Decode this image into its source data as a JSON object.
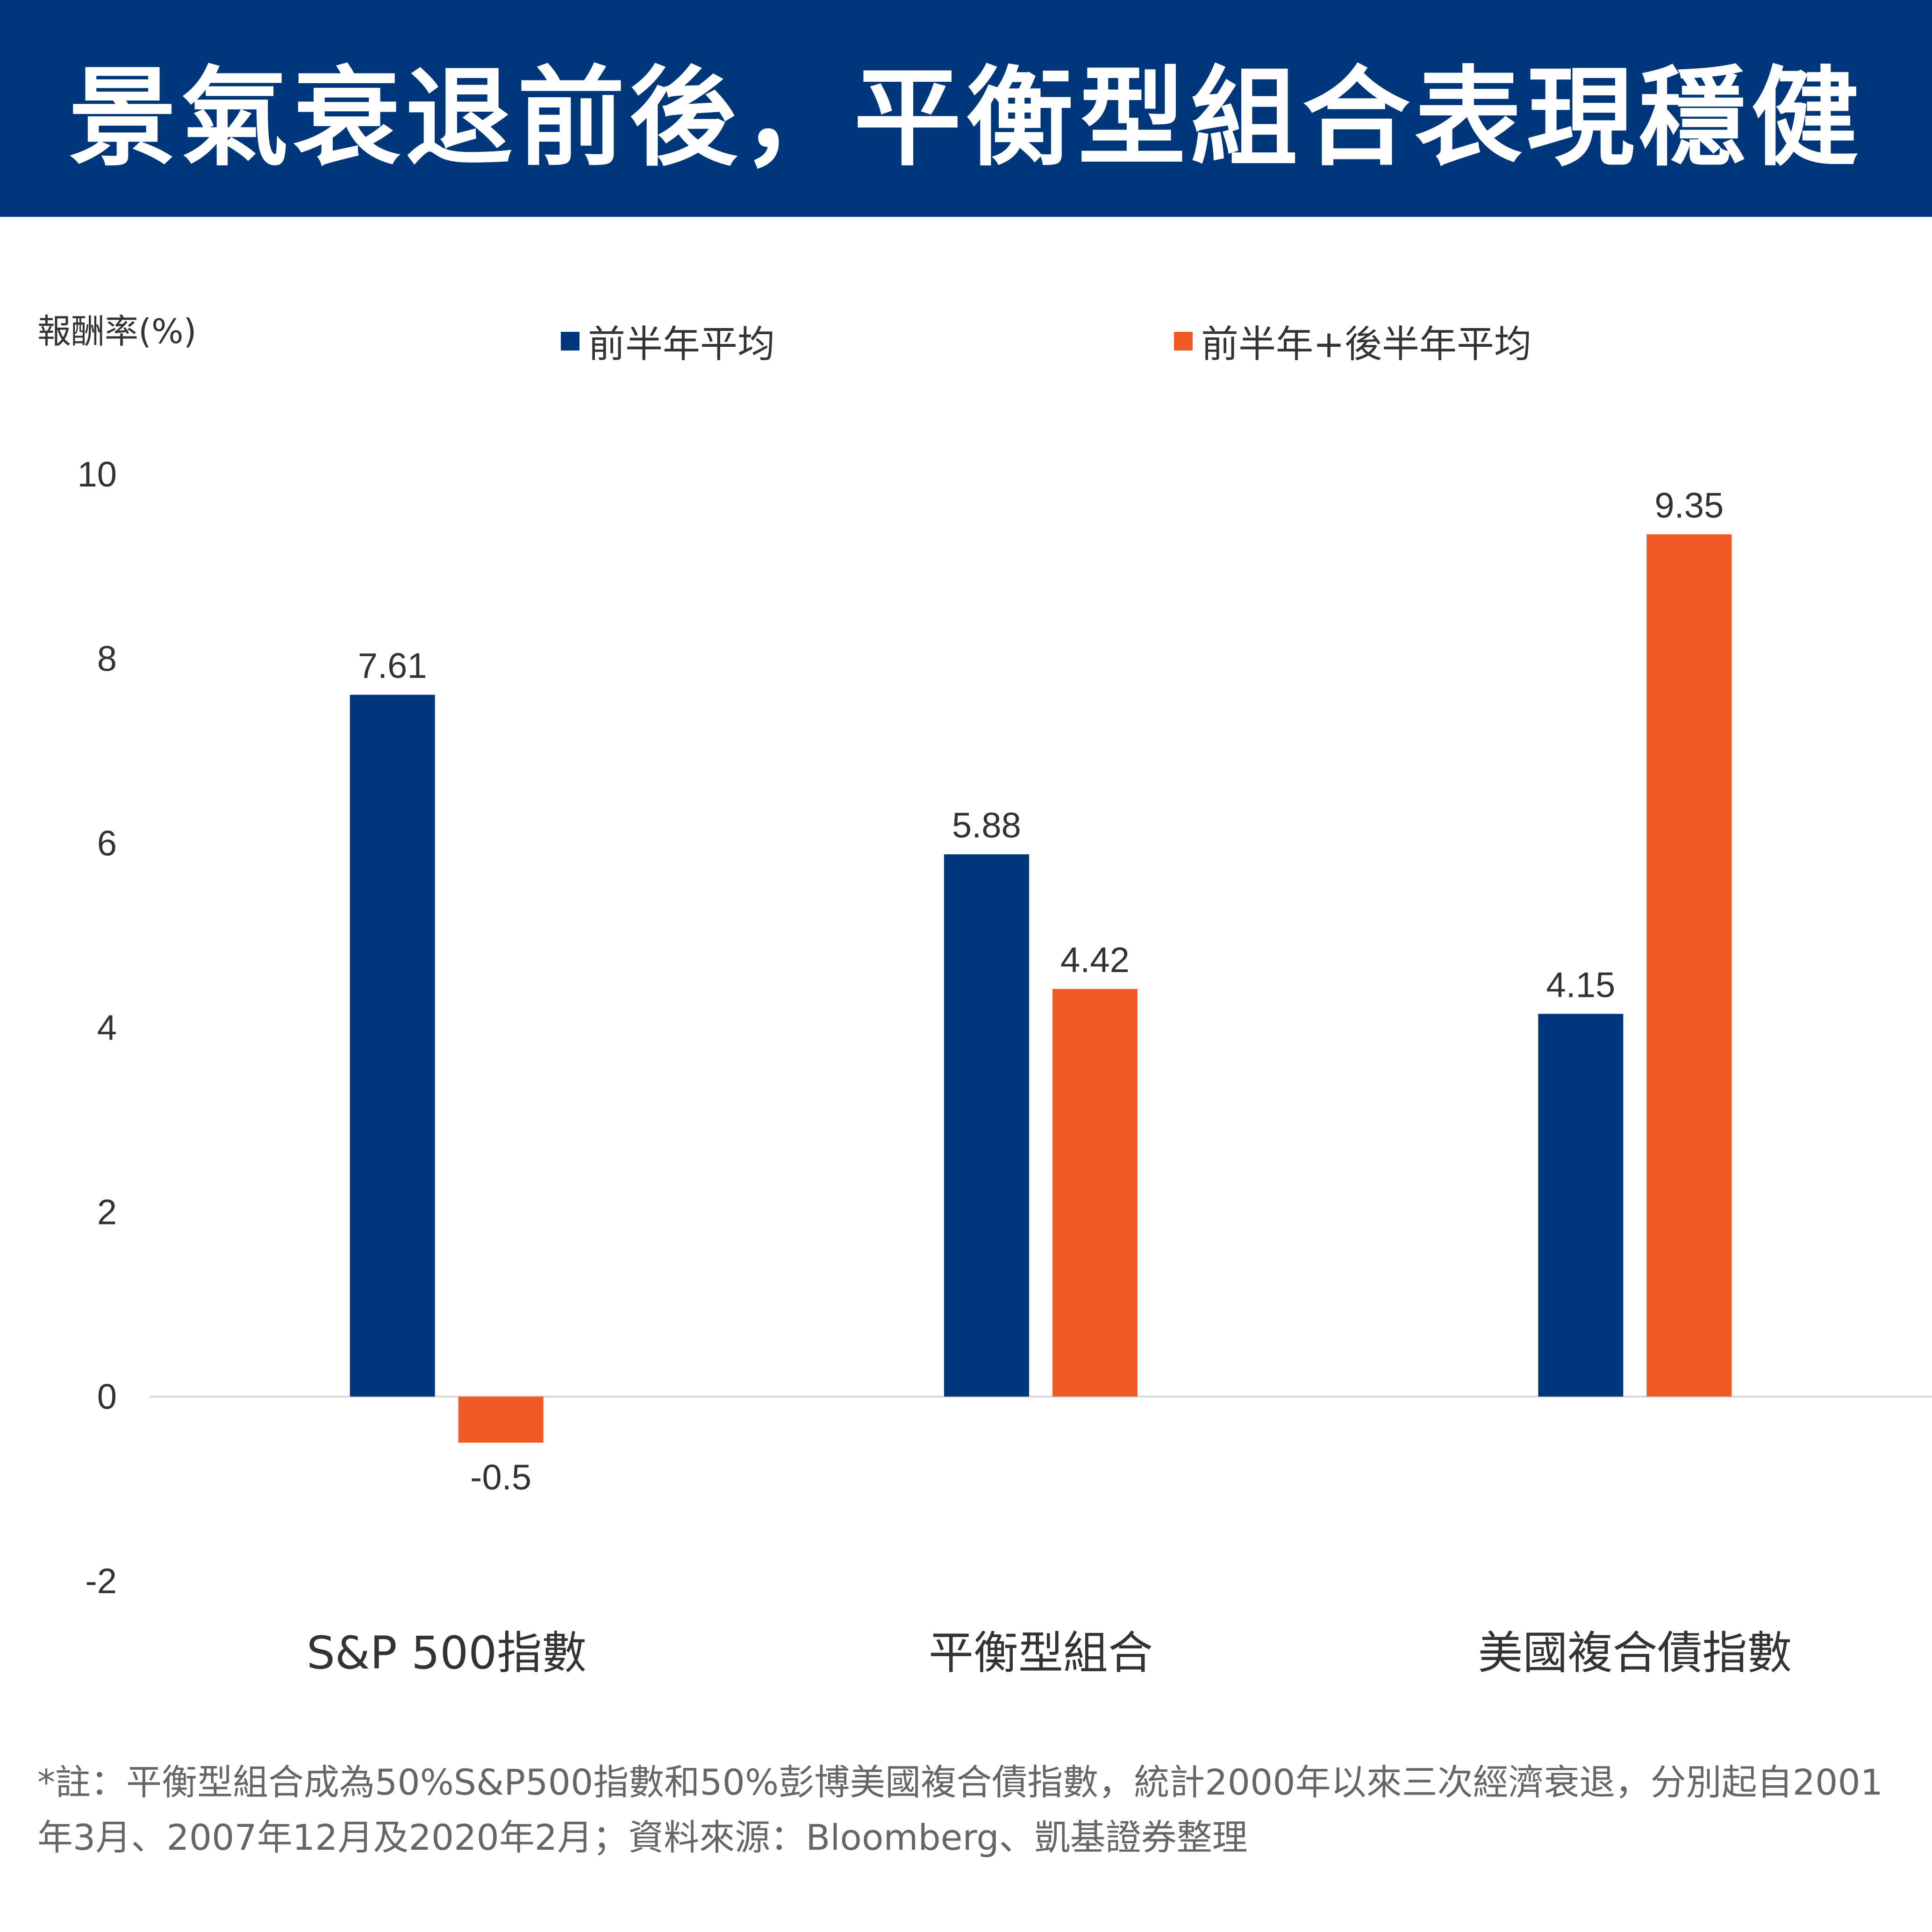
{
  "header": {
    "title": "景氣衰退前後，平衡型組合表現穩健",
    "background": "#00367a"
  },
  "colors": {
    "series_first_half": "#00367a",
    "series_full_year": "#f15a24",
    "axis_line": "#d9d9d9",
    "text_dark": "#333333",
    "text_gray": "#595959"
  },
  "chart_data": {
    "type": "bar",
    "ylabel": "報酬率(%)",
    "categories": [
      "S&P 500指數",
      "平衡型組合",
      "美國複合債指數"
    ],
    "series": [
      {
        "name": "前半年平均",
        "values": [
          7.61,
          5.88,
          4.15
        ],
        "labels": [
          "7.61",
          "5.88",
          "4.15"
        ]
      },
      {
        "name": "前半年+後半年平均",
        "values": [
          -0.5,
          4.42,
          9.35
        ],
        "labels": [
          "-0.5",
          "4.42",
          "9.35"
        ]
      }
    ],
    "ylim": [
      -2,
      10
    ],
    "yticks": [
      "-2",
      "0",
      "2",
      "4",
      "6",
      "8",
      "10"
    ],
    "grid": false,
    "legend_position": "top"
  },
  "footnote": "*註：平衡型組合成為50%S&P500指數和50%彭博美國複合債指數，統計2000年以來三次經濟衰退，分別起自2001年3月、2007年12月及2020年2月；資料來源：Bloomberg、凱基證券整理"
}
